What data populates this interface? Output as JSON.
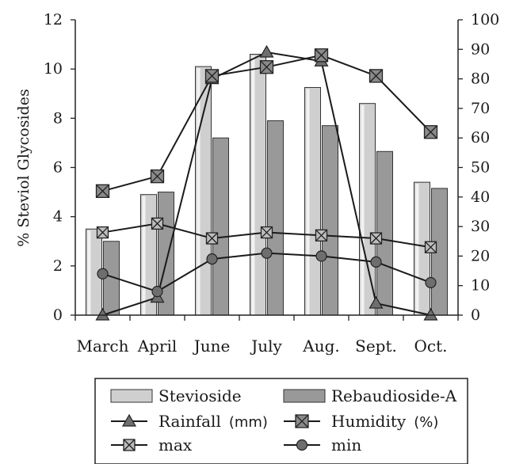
{
  "chart_data": {
    "type": "bar",
    "categories": [
      "March",
      "April",
      "June",
      "July",
      "Aug.",
      "Sept.",
      "Oct."
    ],
    "ylabel": "% Steviol Glycosides",
    "ylim": [
      0,
      12
    ],
    "y_ticks": [
      "0",
      "2",
      "4",
      "6",
      "8",
      "10",
      "12"
    ],
    "y2lim": [
      0,
      100
    ],
    "y2_ticks": [
      "0",
      "10",
      "20",
      "30",
      "40",
      "50",
      "60",
      "70",
      "80",
      "90",
      "100"
    ],
    "grid": false,
    "legend_position": "bottom",
    "bar_series": [
      {
        "name": "Stevioside",
        "axis": "left",
        "color": "#cfcfcf",
        "values": [
          3.5,
          4.9,
          10.1,
          10.6,
          9.25,
          8.6,
          5.4
        ]
      },
      {
        "name": "Rebaudioside-A",
        "axis": "left",
        "color": "#999999",
        "values": [
          3.0,
          5.0,
          7.2,
          7.9,
          7.7,
          6.65,
          5.15
        ]
      }
    ],
    "line_series": [
      {
        "name": "Rainfall",
        "unit": "(mm)",
        "axis": "right",
        "marker": "triangle",
        "values": [
          0,
          6,
          80,
          89,
          86,
          4,
          0
        ]
      },
      {
        "name": "Humidity",
        "unit": "(%)",
        "axis": "right",
        "marker": "xbox",
        "values": [
          42,
          47,
          81,
          84,
          88,
          81,
          62
        ]
      },
      {
        "name": "max",
        "unit": "",
        "axis": "right",
        "marker": "xbox-light",
        "values": [
          28,
          31,
          26,
          28,
          27,
          26,
          23
        ]
      },
      {
        "name": "min",
        "unit": "",
        "axis": "right",
        "marker": "circle",
        "values": [
          14,
          8,
          19,
          21,
          20,
          18,
          11
        ]
      }
    ]
  },
  "legend": {
    "items": [
      {
        "label": "Stevioside",
        "unit": ""
      },
      {
        "label": "Rebaudioside-A",
        "unit": ""
      },
      {
        "label": "Rainfall",
        "unit": "(mm)"
      },
      {
        "label": "Humidity",
        "unit": "(%)"
      },
      {
        "label": "max",
        "unit": ""
      },
      {
        "label": "min",
        "unit": ""
      }
    ]
  }
}
